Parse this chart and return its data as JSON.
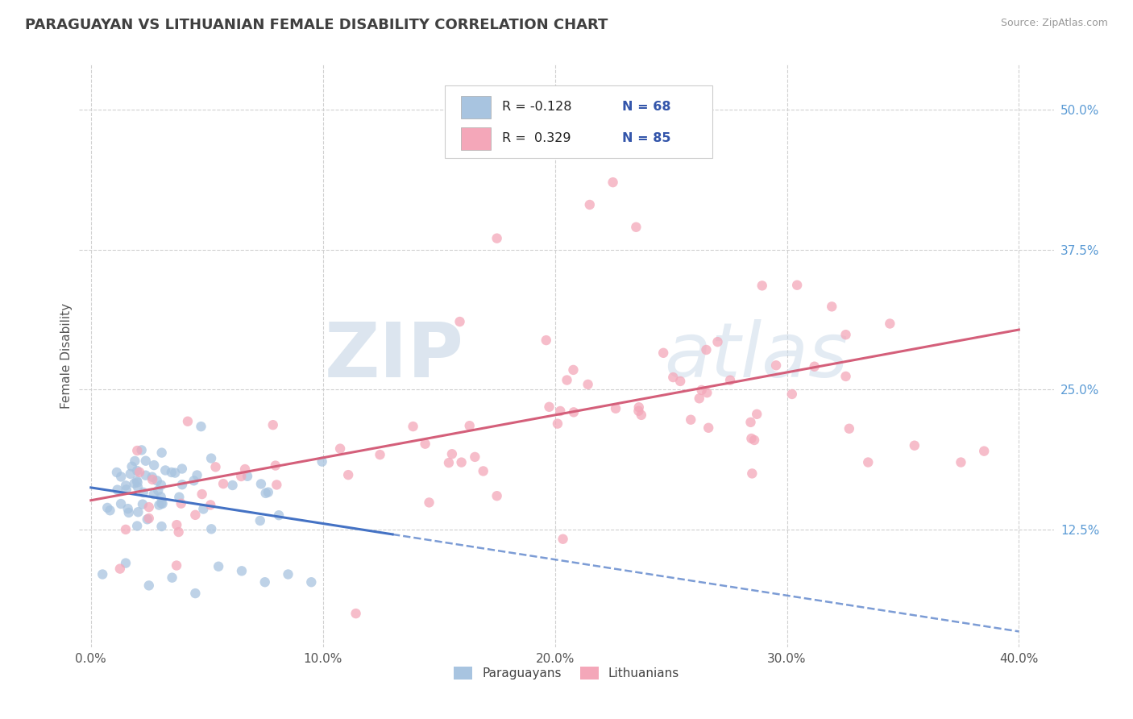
{
  "title": "PARAGUAYAN VS LITHUANIAN FEMALE DISABILITY CORRELATION CHART",
  "source_text": "Source: ZipAtlas.com",
  "xlabel_paraguayans": "Paraguayans",
  "xlabel_lithuanians": "Lithuanians",
  "ylabel": "Female Disability",
  "x_tick_labels": [
    "0.0%",
    "10.0%",
    "20.0%",
    "30.0%",
    "40.0%"
  ],
  "x_tick_values": [
    0.0,
    0.1,
    0.2,
    0.3,
    0.4
  ],
  "y_tick_labels": [
    "12.5%",
    "25.0%",
    "37.5%",
    "50.0%"
  ],
  "y_tick_values": [
    0.125,
    0.25,
    0.375,
    0.5
  ],
  "xlim": [
    -0.005,
    0.415
  ],
  "ylim": [
    0.02,
    0.54
  ],
  "color_paraguayan": "#a8c4e0",
  "color_lithuanian": "#f4a7b9",
  "color_trendline_paraguayan": "#4472c4",
  "color_trendline_lithuanian": "#d45f7a",
  "watermark_zip": "#c8d8e8",
  "watermark_atlas": "#c8d8e8",
  "background_color": "#ffffff",
  "grid_color": "#d0d0d0",
  "title_color": "#404040",
  "source_color": "#999999",
  "ytick_color": "#5b9bd5",
  "legend_r_color": "#3355aa",
  "legend_n_color": "#3355aa"
}
